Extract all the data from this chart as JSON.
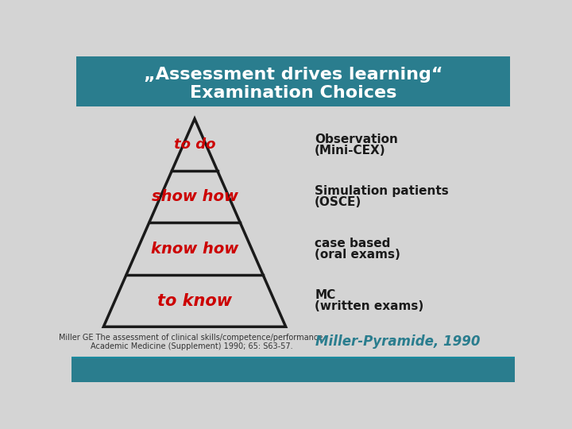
{
  "title_line1": "„Assessment drives learning“",
  "title_line2": "Examination Choices",
  "title_bg_color": "#2a7d8e",
  "title_text_color": "#ffffff",
  "bg_color": "#d4d4d4",
  "pyramid_fill": "#d4d4d4",
  "pyramid_outline": "#1a1a1a",
  "pyramid_line_color": "#1a1a1a",
  "pyramid_text_color": "#cc0000",
  "pyramid_labels": [
    "to do",
    "show how",
    "know how",
    "to know"
  ],
  "right_labels": [
    [
      "Observation",
      "(Mini-CEX)"
    ],
    [
      "Simulation patients",
      "(OSCE)"
    ],
    [
      "case based",
      "(oral exams)"
    ],
    [
      "MC",
      "(written exams)"
    ]
  ],
  "right_label_color": "#1a1a1a",
  "footer_left_line1": "Miller GE The assessment of clinical skills/competence/performance.",
  "footer_left_line2": "Academic Medicine (Supplement) 1990; 65: S63-57.",
  "footer_right": "Miller-Pyramide, 1990",
  "footer_right_color": "#2a7d8e",
  "footer_left_color": "#333333",
  "bottom_bar_color": "#2a7d8e"
}
